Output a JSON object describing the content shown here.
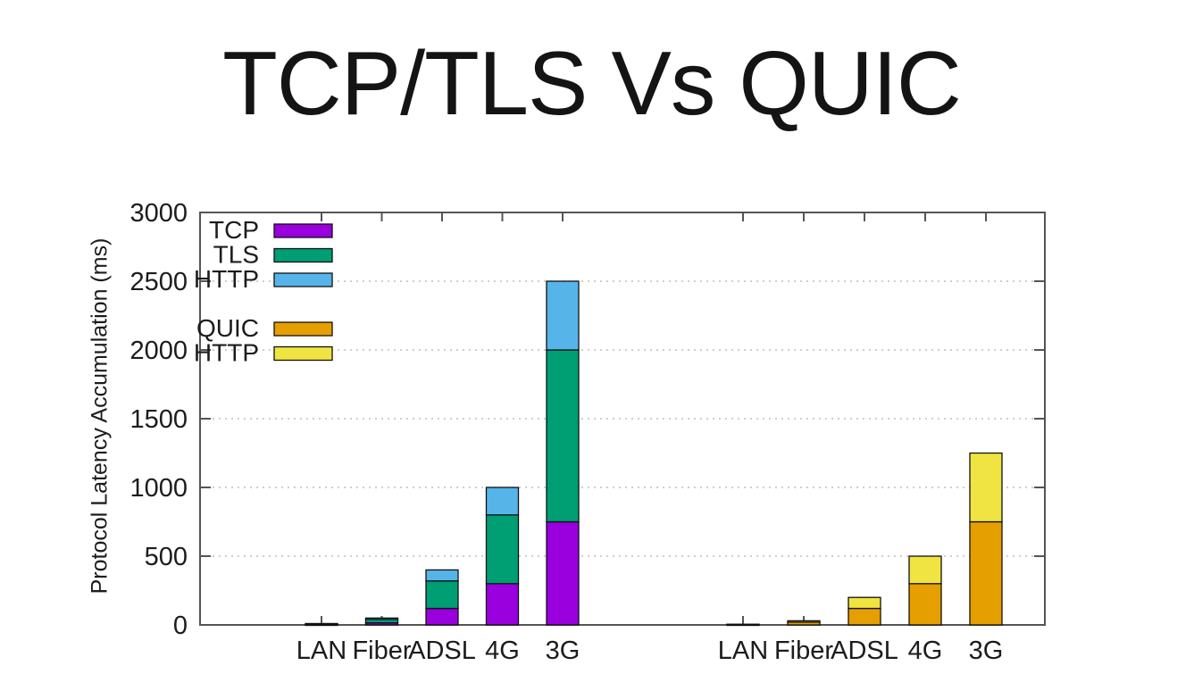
{
  "title": "TCP/TLS Vs QUIC",
  "chart_data": {
    "type": "bar",
    "stacked": true,
    "title": "TCP/TLS Vs QUIC",
    "ylabel": "Protocol Latency Accumulation (ms)",
    "unit": "ms",
    "ylim": [
      0,
      3000
    ],
    "yticks": [
      0,
      500,
      1000,
      1500,
      2000,
      2500,
      3000
    ],
    "grid": "dotted-horizontal",
    "legend_position": "top-left-inside",
    "categories": [
      "LAN",
      "Fiber",
      "ADSL",
      "4G",
      "3G"
    ],
    "groups": [
      {
        "name": "tcp-tls",
        "series": [
          {
            "name": "TCP",
            "color": "#9900DD",
            "values": [
              3,
              15,
              120,
              300,
              750
            ]
          },
          {
            "name": "TLS",
            "color": "#009E73",
            "values": [
              4,
              25,
              200,
              500,
              1250
            ]
          },
          {
            "name": "HTTP",
            "color": "#56B4E9",
            "values": [
              3,
              10,
              80,
              200,
              500
            ]
          }
        ]
      },
      {
        "name": "quic",
        "series": [
          {
            "name": "QUIC",
            "color": "#E69F00",
            "values": [
              3,
              20,
              120,
              300,
              750
            ]
          },
          {
            "name": "HTTP",
            "color": "#F0E442",
            "values": [
              2,
              10,
              80,
              200,
              500
            ]
          }
        ]
      }
    ]
  }
}
